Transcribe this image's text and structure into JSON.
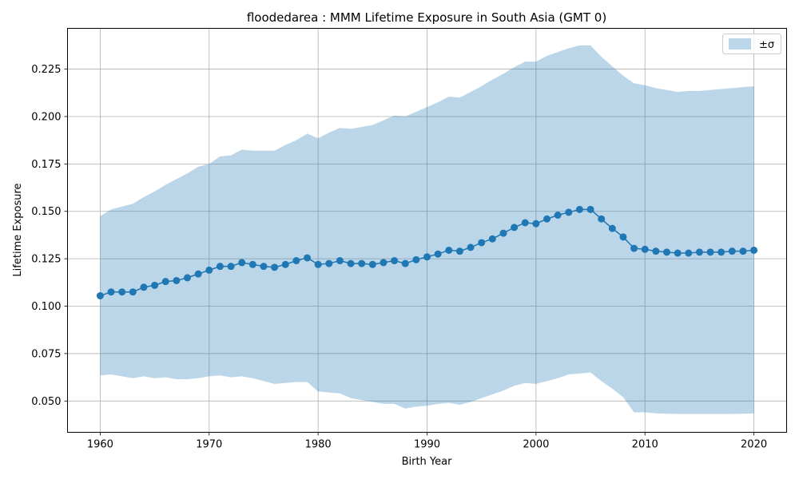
{
  "chart_data": {
    "type": "line",
    "title": "floodedarea : MMM Lifetime Exposure in South Asia (GMT 0)",
    "xlabel": "Birth Year",
    "ylabel": "Lifetime Exposure",
    "xlim": [
      1957,
      2023
    ],
    "ylim": [
      0.0335,
      0.2465
    ],
    "xticks": [
      1960,
      1970,
      1980,
      1990,
      2000,
      2010,
      2020
    ],
    "yticks": [
      0.05,
      0.075,
      0.1,
      0.125,
      0.15,
      0.175,
      0.2,
      0.225
    ],
    "ytick_labels": [
      "0.050",
      "0.075",
      "0.100",
      "0.125",
      "0.150",
      "0.175",
      "0.200",
      "0.225"
    ],
    "grid": true,
    "legend": {
      "position": "top-right",
      "entries": [
        "±σ"
      ]
    },
    "colors": {
      "line": "#1f77b4",
      "band": "#1f77b4"
    },
    "x": [
      1960,
      1961,
      1962,
      1963,
      1964,
      1965,
      1966,
      1967,
      1968,
      1969,
      1970,
      1971,
      1972,
      1973,
      1974,
      1975,
      1976,
      1977,
      1978,
      1979,
      1980,
      1981,
      1982,
      1983,
      1984,
      1985,
      1986,
      1987,
      1988,
      1989,
      1990,
      1991,
      1992,
      1993,
      1994,
      1995,
      1996,
      1997,
      1998,
      1999,
      2000,
      2001,
      2002,
      2003,
      2004,
      2005,
      2006,
      2007,
      2008,
      2009,
      2010,
      2011,
      2012,
      2013,
      2014,
      2015,
      2016,
      2017,
      2018,
      2019,
      2020
    ],
    "series": [
      {
        "values": [
          0.1055,
          0.1075,
          0.1075,
          0.1075,
          0.11,
          0.111,
          0.113,
          0.1135,
          0.115,
          0.117,
          0.119,
          0.121,
          0.121,
          0.123,
          0.122,
          0.121,
          0.1205,
          0.122,
          0.124,
          0.1255,
          0.122,
          0.1225,
          0.124,
          0.1225,
          0.1225,
          0.122,
          0.123,
          0.124,
          0.1225,
          0.1245,
          0.126,
          0.1275,
          0.1295,
          0.129,
          0.131,
          0.1335,
          0.1355,
          0.1385,
          0.1415,
          0.144,
          0.1435,
          0.146,
          0.148,
          0.1495,
          0.151,
          0.151,
          0.146,
          0.141,
          0.1365,
          0.1305,
          0.13,
          0.129,
          0.1285,
          0.128,
          0.128,
          0.1285,
          0.1285,
          0.1285,
          0.129,
          0.129,
          0.1295
        ],
        "upper": [
          0.1475,
          0.151,
          0.1525,
          0.154,
          0.1575,
          0.1605,
          0.164,
          0.167,
          0.17,
          0.1735,
          0.175,
          0.179,
          0.1795,
          0.1825,
          0.182,
          0.182,
          0.182,
          0.185,
          0.1875,
          0.191,
          0.1885,
          0.1915,
          0.194,
          0.1935,
          0.1945,
          0.1955,
          0.198,
          0.2005,
          0.2,
          0.2025,
          0.205,
          0.2075,
          0.2105,
          0.21,
          0.213,
          0.216,
          0.2195,
          0.2225,
          0.226,
          0.229,
          0.229,
          0.232,
          0.234,
          0.236,
          0.2375,
          0.2375,
          0.2315,
          0.2265,
          0.2215,
          0.2175,
          0.2165,
          0.215,
          0.214,
          0.213,
          0.2135,
          0.2135,
          0.214,
          0.2145,
          0.215,
          0.2155,
          0.216
        ],
        "lower": [
          0.0635,
          0.064,
          0.063,
          0.062,
          0.063,
          0.062,
          0.0625,
          0.0615,
          0.0615,
          0.062,
          0.063,
          0.0635,
          0.0625,
          0.063,
          0.062,
          0.0605,
          0.059,
          0.0595,
          0.06,
          0.06,
          0.055,
          0.0545,
          0.054,
          0.0515,
          0.0505,
          0.0495,
          0.0485,
          0.0485,
          0.046,
          0.047,
          0.0475,
          0.0485,
          0.049,
          0.048,
          0.0495,
          0.0515,
          0.0535,
          0.0555,
          0.058,
          0.0595,
          0.059,
          0.0605,
          0.062,
          0.064,
          0.0645,
          0.065,
          0.0605,
          0.0565,
          0.052,
          0.044,
          0.044,
          0.0435,
          0.0433,
          0.0432,
          0.0432,
          0.0432,
          0.0432,
          0.0432,
          0.0432,
          0.0433,
          0.0435
        ]
      }
    ]
  }
}
